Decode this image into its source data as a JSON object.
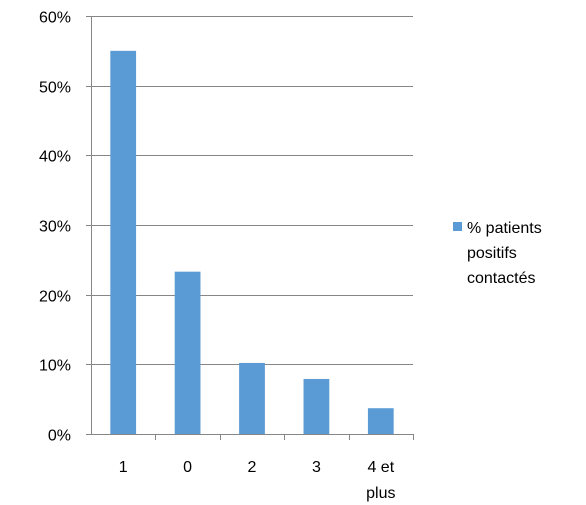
{
  "chart_data": {
    "type": "bar",
    "categories": [
      [
        "1"
      ],
      [
        "0"
      ],
      [
        "2"
      ],
      [
        "3"
      ],
      [
        "4 et",
        "plus"
      ]
    ],
    "series": [
      {
        "name_lines": [
          "% patients",
          "positifs",
          "contactés"
        ],
        "values": [
          55,
          23.3,
          10.2,
          7.9,
          3.7
        ],
        "color": "#5b9bd5"
      }
    ],
    "y_unit": "%",
    "ylim": [
      0,
      60
    ],
    "ytick_step": 10,
    "gridlines": true,
    "legend_position": "right"
  }
}
